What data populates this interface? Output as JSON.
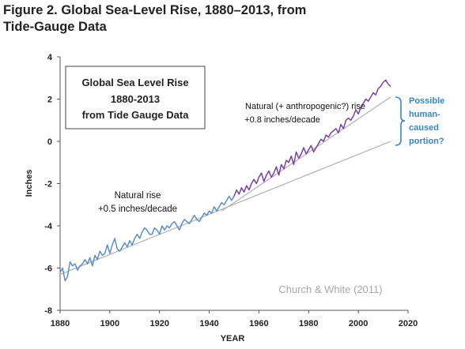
{
  "figure": {
    "title_line1": "Figure 2. Global Sea-Level Rise, 1880–2013, from",
    "title_line2": "Tide-Gauge Data"
  },
  "chart_data": {
    "type": "line",
    "xlabel": "YEAR",
    "ylabel": "Inches",
    "xlim": [
      1880,
      2020
    ],
    "ylim": [
      -8,
      4
    ],
    "xticks": [
      1880,
      1900,
      1920,
      1940,
      1960,
      1980,
      2000,
      2020
    ],
    "yticks": [
      4,
      2,
      0,
      -2,
      -4,
      -6,
      -8
    ],
    "grid": false,
    "inner_title": [
      "Global Sea Level Rise",
      "1880-2013",
      "from Tide Gauge Data"
    ],
    "source": "Church & White (2011)",
    "annotations": {
      "natural": [
        "Natural rise",
        "+0.5 inches/decade"
      ],
      "anthro": [
        "Natural (+ anthropogenic?) rise",
        "+0.8 inches/decade"
      ],
      "human": [
        "Possible",
        "human-",
        "caused",
        "portion?"
      ]
    },
    "colors": {
      "early_series": "#5b8fc9",
      "late_series": "#7b3fa3",
      "trend": "#b0b0b0",
      "human_text": "#3a85c6"
    },
    "series": [
      {
        "x": [
          1880,
          1881,
          1882,
          1883,
          1884,
          1885,
          1886,
          1887,
          1888,
          1889,
          1890,
          1891,
          1892,
          1893,
          1894,
          1895,
          1896,
          1897,
          1898,
          1899,
          1900,
          1901,
          1902,
          1903,
          1904,
          1905,
          1906,
          1907,
          1908,
          1909,
          1910,
          1911,
          1912,
          1913,
          1914,
          1915,
          1916,
          1917,
          1918,
          1919,
          1920,
          1921,
          1922,
          1923,
          1924,
          1925,
          1926,
          1927,
          1928,
          1929,
          1930,
          1931,
          1932,
          1933,
          1934,
          1935,
          1936,
          1937,
          1938,
          1939,
          1940,
          1941,
          1942,
          1943,
          1944,
          1945,
          1946,
          1947,
          1948,
          1949,
          1950
        ],
        "values": [
          -6.2,
          -6.0,
          -6.6,
          -6.4,
          -5.7,
          -5.9,
          -5.8,
          -6.1,
          -5.9,
          -5.8,
          -5.6,
          -5.8,
          -5.5,
          -5.9,
          -5.4,
          -5.6,
          -5.2,
          -5.4,
          -5.3,
          -4.9,
          -5.3,
          -4.9,
          -4.6,
          -5.1,
          -5.2,
          -5.0,
          -4.8,
          -5.0,
          -4.7,
          -4.9,
          -4.6,
          -4.4,
          -4.6,
          -4.3,
          -4.1,
          -4.2,
          -4.4,
          -4.4,
          -4.1,
          -4.2,
          -4.4,
          -4.0,
          -4.2,
          -4.0,
          -4.1,
          -3.9,
          -3.8,
          -4.0,
          -4.2,
          -3.9,
          -3.7,
          -3.8,
          -3.9,
          -3.7,
          -3.5,
          -3.7,
          -3.8,
          -3.6,
          -3.4,
          -3.5,
          -3.3,
          -3.4,
          -3.1,
          -3.3,
          -3.1,
          -2.9,
          -3.0,
          -2.8,
          -2.6,
          -2.8,
          -2.6
        ]
      },
      {
        "x": [
          1950,
          1951,
          1952,
          1953,
          1954,
          1955,
          1956,
          1957,
          1958,
          1959,
          1960,
          1961,
          1962,
          1963,
          1964,
          1965,
          1966,
          1967,
          1968,
          1969,
          1970,
          1971,
          1972,
          1973,
          1974,
          1975,
          1976,
          1977,
          1978,
          1979,
          1980,
          1981,
          1982,
          1983,
          1984,
          1985,
          1986,
          1987,
          1988,
          1989,
          1990,
          1991,
          1992,
          1993,
          1994,
          1995,
          1996,
          1997,
          1998,
          1999,
          2000,
          2001,
          2002,
          2003,
          2004,
          2005,
          2006,
          2007,
          2008,
          2009,
          2010,
          2011,
          2012,
          2013
        ],
        "values": [
          -2.6,
          -2.3,
          -2.5,
          -2.2,
          -2.4,
          -2.1,
          -2.3,
          -2.0,
          -1.8,
          -2.0,
          -1.7,
          -1.5,
          -1.9,
          -1.6,
          -1.4,
          -1.7,
          -1.5,
          -1.2,
          -1.6,
          -1.1,
          -1.3,
          -0.9,
          -1.0,
          -0.7,
          -1.1,
          -0.5,
          -0.8,
          -0.6,
          -0.3,
          -0.6,
          -0.4,
          -0.2,
          -0.5,
          -0.3,
          -0.1,
          0.1,
          0.0,
          0.3,
          0.2,
          0.4,
          0.5,
          0.6,
          0.4,
          0.8,
          0.6,
          1.0,
          1.1,
          1.0,
          1.2,
          1.5,
          1.3,
          1.6,
          1.8,
          2.0,
          1.9,
          2.1,
          2.3,
          2.2,
          2.5,
          2.6,
          2.8,
          2.9,
          2.7,
          2.6
        ]
      }
    ],
    "trend_lines": [
      {
        "x": [
          1880,
          2013
        ],
        "values": [
          -6.3,
          0.0
        ]
      },
      {
        "x": [
          1945,
          2013
        ],
        "values": [
          -3.3,
          2.1
        ]
      }
    ]
  }
}
